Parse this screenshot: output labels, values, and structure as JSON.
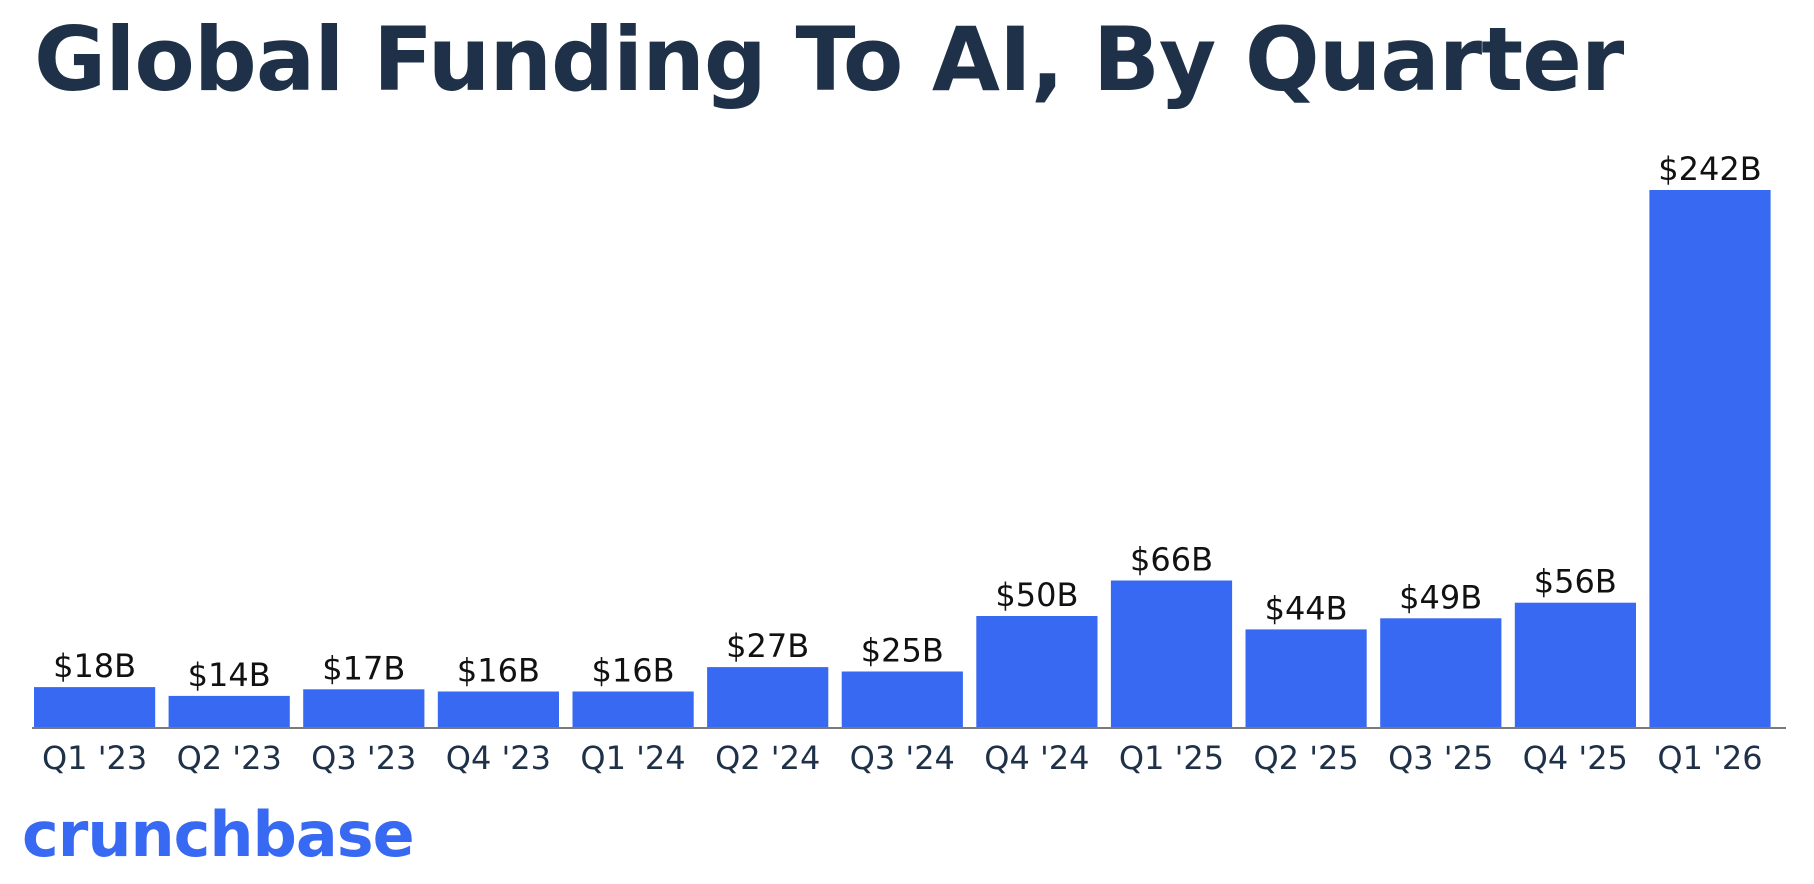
{
  "colors": {
    "bar": "#3769f2",
    "title": "#1f3148",
    "axis": "#7a7a7a",
    "brand": "#3769f2"
  },
  "brand": {
    "name": "crunchbase"
  },
  "chart_data": {
    "type": "bar",
    "title": "Global Funding To AI, By Quarter",
    "xlabel": "",
    "ylabel": "",
    "unit": "USD billions",
    "ylim": [
      0,
      242
    ],
    "grid": false,
    "categories": [
      "Q1 '23",
      "Q2 '23",
      "Q3 '23",
      "Q4 '23",
      "Q1 '24",
      "Q2 '24",
      "Q3 '24",
      "Q4 '24",
      "Q1 '25",
      "Q2 '25",
      "Q3 '25",
      "Q4 '25",
      "Q1 '26"
    ],
    "values": [
      18,
      14,
      17,
      16,
      16,
      27,
      25,
      50,
      66,
      44,
      49,
      56,
      242
    ],
    "data_labels": [
      "$18B",
      "$14B",
      "$17B",
      "$16B",
      "$16B",
      "$27B",
      "$25B",
      "$50B",
      "$66B",
      "$44B",
      "$49B",
      "$56B",
      "$242B"
    ]
  }
}
